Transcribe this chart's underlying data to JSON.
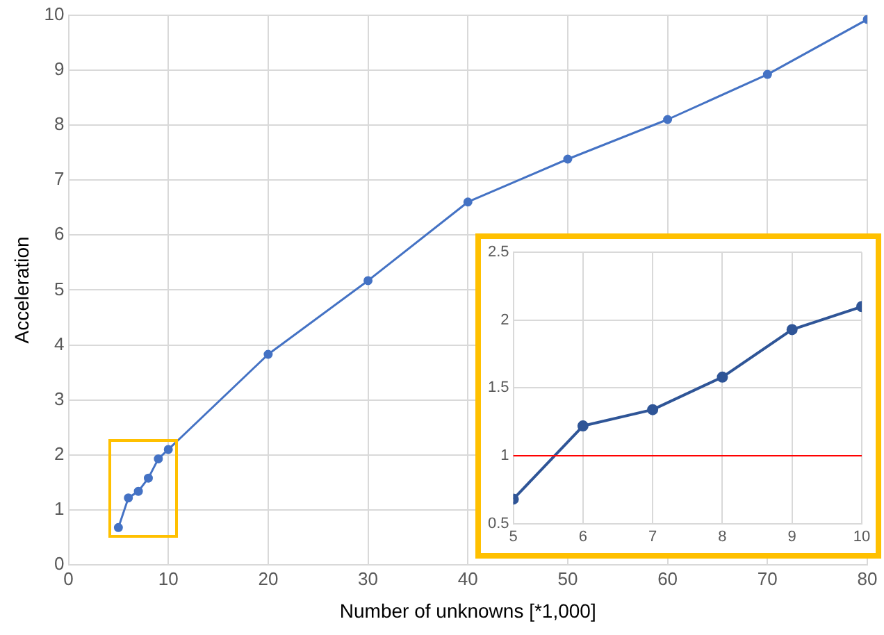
{
  "chart_data": [
    {
      "type": "line",
      "xlabel": "Number of unknowns [*1,000]",
      "ylabel": "Acceleration",
      "x": [
        5,
        6,
        7,
        8,
        9,
        10,
        20,
        30,
        40,
        50,
        60,
        70,
        80
      ],
      "series": [
        {
          "color": "#4472c4",
          "values": [
            0.68,
            1.22,
            1.34,
            1.58,
            1.93,
            2.1,
            3.83,
            5.17,
            6.6,
            7.38,
            8.1,
            8.92,
            9.92
          ]
        }
      ],
      "xlim": [
        0,
        80
      ],
      "xticks": [
        0,
        10,
        20,
        30,
        40,
        50,
        60,
        70,
        80
      ],
      "ylim": [
        0,
        10
      ],
      "yticks": [
        0,
        1,
        2,
        3,
        4,
        5,
        6,
        7,
        8,
        9,
        10
      ],
      "grid": true,
      "legend": false,
      "marker": "circle"
    },
    {
      "type": "line",
      "x": [
        5,
        6,
        7,
        8,
        9,
        10
      ],
      "series": [
        {
          "color": "#2f5597",
          "values": [
            0.68,
            1.22,
            1.34,
            1.58,
            1.93,
            2.1
          ]
        }
      ],
      "xlim": [
        5,
        10
      ],
      "xticks": [
        5,
        6,
        7,
        8,
        9,
        10
      ],
      "ylim": [
        0.5,
        2.5
      ],
      "yticks": [
        0.5,
        1,
        1.5,
        2,
        2.5
      ],
      "grid": true,
      "legend": false,
      "marker": "circle",
      "ref_lines": [
        {
          "axis": "y",
          "value": 1,
          "color": "#ff0000"
        }
      ]
    }
  ]
}
